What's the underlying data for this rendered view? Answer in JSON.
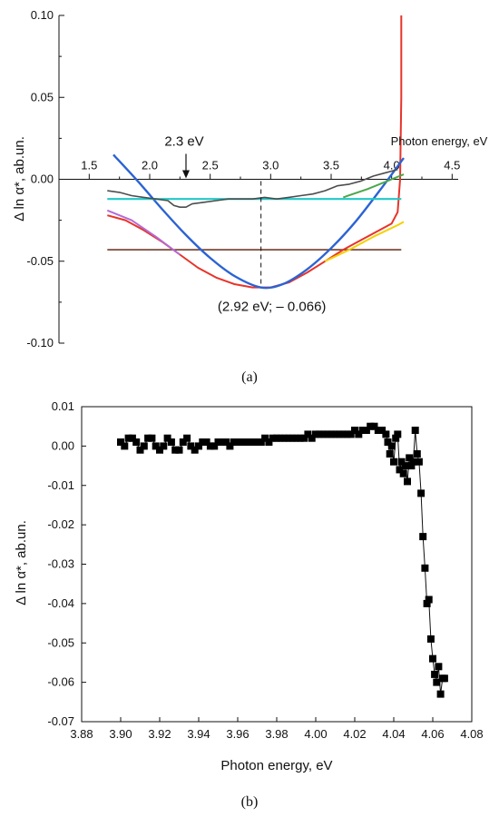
{
  "panel_a": {
    "caption": "(a)",
    "xlabel": "Photon energy, eV",
    "ylabel": "Δ ln α*, ab.un.",
    "annotation_energy": "2.3 eV",
    "annotation_min": "(2.92 eV; – 0.066)",
    "colors": {
      "measured": "#4d4d4d",
      "measured_red": "#e8332a",
      "parabola": "#2b63d4",
      "cyan_line": "#22c7c7",
      "brown_line": "#7a4a3a",
      "purple_fit": "#b36bd6",
      "yellow_fit": "#f5d000",
      "green_fit": "#4aa84a"
    }
  },
  "panel_b": {
    "caption": "(b)",
    "xlabel": "Photon energy, eV",
    "ylabel": "Δ ln α*, ab.un.",
    "marker_color": "#000000"
  },
  "chart_data": [
    {
      "type": "line",
      "xlabel": "Photon energy, eV",
      "ylabel": "Δ ln α*, ab.un.",
      "xlim": [
        1.25,
        4.55
      ],
      "ylim": [
        -0.1,
        0.1
      ],
      "x_ticks": [
        "1.5",
        "2.0",
        "2.5",
        "3.0",
        "3.5",
        "4.0",
        "4.5"
      ],
      "y_ticks": [
        "-0.10",
        "-0.05",
        "0.00",
        "0.05",
        "0.10"
      ],
      "series": [
        {
          "role": "measured",
          "x": [
            1.65,
            1.75,
            1.85,
            1.95,
            2.05,
            2.15,
            2.2,
            2.25,
            2.3,
            2.35,
            2.45,
            2.55,
            2.65,
            2.75,
            2.85,
            2.95,
            3.05,
            3.15,
            3.25,
            3.35,
            3.45,
            3.55,
            3.65,
            3.75,
            3.85,
            3.95,
            4.0,
            4.05
          ],
          "y": [
            -0.007,
            -0.008,
            -0.01,
            -0.011,
            -0.012,
            -0.013,
            -0.016,
            -0.017,
            -0.017,
            -0.015,
            -0.014,
            -0.013,
            -0.012,
            -0.012,
            -0.012,
            -0.011,
            -0.012,
            -0.011,
            -0.01,
            -0.009,
            -0.007,
            -0.004,
            -0.003,
            -0.001,
            0.002,
            0.004,
            0.005,
            0.006
          ]
        },
        {
          "role": "measured-red",
          "x": [
            1.65,
            1.8,
            1.95,
            2.1,
            2.25,
            2.4,
            2.55,
            2.7,
            2.85,
            2.92,
            3.0,
            3.15,
            3.3,
            3.45,
            3.6,
            3.75,
            3.9,
            4.0,
            4.05,
            4.07,
            4.08,
            4.08
          ],
          "y": [
            -0.022,
            -0.025,
            -0.031,
            -0.038,
            -0.046,
            -0.054,
            -0.06,
            -0.064,
            -0.066,
            -0.066,
            -0.066,
            -0.063,
            -0.057,
            -0.05,
            -0.043,
            -0.037,
            -0.031,
            -0.027,
            -0.02,
            0.0,
            0.05,
            0.1
          ]
        },
        {
          "role": "parabola",
          "x": [
            1.7,
            1.9,
            2.1,
            2.3,
            2.5,
            2.7,
            2.92,
            3.1,
            3.3,
            3.5,
            3.7,
            3.9,
            4.1
          ],
          "y": [
            0.015,
            -0.001,
            -0.018,
            -0.034,
            -0.048,
            -0.059,
            -0.066,
            -0.064,
            -0.055,
            -0.042,
            -0.026,
            -0.007,
            0.013
          ]
        },
        {
          "role": "cyan-line",
          "x": [
            1.65,
            4.08
          ],
          "y": [
            -0.012,
            -0.012
          ]
        },
        {
          "role": "brown-line",
          "x": [
            1.65,
            4.08
          ],
          "y": [
            -0.043,
            -0.043
          ]
        },
        {
          "role": "purple-fit",
          "x": [
            1.65,
            1.85,
            2.05,
            2.25
          ],
          "y": [
            -0.019,
            -0.025,
            -0.035,
            -0.046
          ]
        },
        {
          "role": "yellow-fit",
          "x": [
            3.45,
            3.65,
            3.85,
            4.05,
            4.1
          ],
          "y": [
            -0.05,
            -0.043,
            -0.035,
            -0.028,
            -0.026
          ]
        },
        {
          "role": "green-fit",
          "x": [
            3.6,
            3.8,
            4.0,
            4.1
          ],
          "y": [
            -0.011,
            -0.006,
            0.0,
            0.003
          ]
        }
      ]
    },
    {
      "type": "scatter",
      "xlabel": "Photon energy, eV",
      "ylabel": "Δ ln α*, ab.un.",
      "xlim": [
        3.88,
        4.08
      ],
      "ylim": [
        -0.07,
        0.01
      ],
      "x_ticks": [
        "3.88",
        "3.90",
        "3.92",
        "3.94",
        "3.96",
        "3.98",
        "4.00",
        "4.02",
        "4.04",
        "4.06",
        "4.08"
      ],
      "y_ticks": [
        "-0.07",
        "-0.06",
        "-0.05",
        "-0.04",
        "-0.03",
        "-0.02",
        "-0.01",
        "0.00",
        "0.01"
      ],
      "series": [
        {
          "x": [
            3.9,
            3.902,
            3.904,
            3.906,
            3.908,
            3.91,
            3.912,
            3.914,
            3.916,
            3.918,
            3.92,
            3.922,
            3.924,
            3.926,
            3.928,
            3.93,
            3.932,
            3.934,
            3.936,
            3.938,
            3.94,
            3.942,
            3.944,
            3.946,
            3.948,
            3.95,
            3.952,
            3.954,
            3.956,
            3.958,
            3.96,
            3.962,
            3.964,
            3.966,
            3.968,
            3.97,
            3.972,
            3.974,
            3.976,
            3.978,
            3.98,
            3.982,
            3.984,
            3.986,
            3.988,
            3.99,
            3.992,
            3.994,
            3.996,
            3.998,
            4.0,
            4.002,
            4.004,
            4.006,
            4.008,
            4.01,
            4.012,
            4.014,
            4.016,
            4.018,
            4.02,
            4.022,
            4.024,
            4.026,
            4.028,
            4.03,
            4.032,
            4.034,
            4.036,
            4.037,
            4.038,
            4.039,
            4.04,
            4.041,
            4.042,
            4.043,
            4.044,
            4.045,
            4.046,
            4.047,
            4.048,
            4.049,
            4.05,
            4.051,
            4.052,
            4.053,
            4.054,
            4.055,
            4.056,
            4.057,
            4.058,
            4.059,
            4.06,
            4.061,
            4.062,
            4.063,
            4.064,
            4.065,
            4.066
          ],
          "y": [
            0.001,
            0.0,
            0.002,
            0.002,
            0.001,
            -0.001,
            0.0,
            0.002,
            0.002,
            0.0,
            -0.001,
            0.0,
            0.002,
            0.001,
            -0.001,
            -0.001,
            0.001,
            0.002,
            0.0,
            -0.001,
            0.0,
            0.001,
            0.001,
            0.0,
            0.0,
            0.001,
            0.001,
            0.001,
            0.0,
            0.001,
            0.001,
            0.001,
            0.001,
            0.001,
            0.001,
            0.001,
            0.001,
            0.002,
            0.001,
            0.002,
            0.002,
            0.002,
            0.002,
            0.002,
            0.002,
            0.002,
            0.002,
            0.002,
            0.003,
            0.002,
            0.003,
            0.003,
            0.003,
            0.003,
            0.003,
            0.003,
            0.003,
            0.003,
            0.003,
            0.003,
            0.004,
            0.003,
            0.004,
            0.004,
            0.005,
            0.005,
            0.004,
            0.004,
            0.003,
            0.001,
            -0.002,
            0.0,
            -0.004,
            0.002,
            0.003,
            -0.006,
            -0.004,
            -0.007,
            -0.005,
            -0.009,
            -0.003,
            -0.005,
            -0.004,
            0.004,
            -0.002,
            -0.004,
            -0.012,
            -0.023,
            -0.031,
            -0.04,
            -0.039,
            -0.049,
            -0.054,
            -0.058,
            -0.06,
            -0.056,
            -0.063,
            -0.059,
            -0.059
          ]
        }
      ]
    }
  ]
}
